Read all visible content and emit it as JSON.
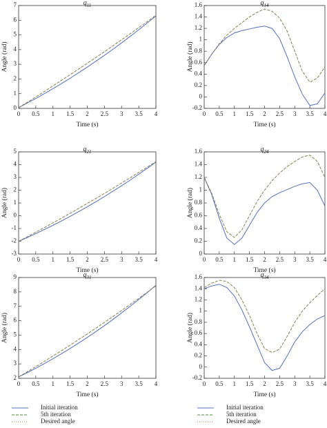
{
  "chart_data": [
    {
      "type": "line",
      "title": "q11",
      "xlabel": "Time (s)",
      "ylabel": "Angle (rad)",
      "x": [
        0,
        0.25,
        0.5,
        0.75,
        1,
        1.25,
        1.5,
        1.75,
        2,
        2.25,
        2.5,
        2.75,
        3,
        3.25,
        3.5,
        3.75,
        4
      ],
      "xlim": [
        0,
        4
      ],
      "xticks": [
        0,
        0.5,
        1,
        1.5,
        2,
        2.5,
        3,
        3.5,
        4
      ],
      "ylim": [
        0,
        7
      ],
      "yticks": [
        0,
        1,
        2,
        3,
        4,
        5,
        6,
        7
      ],
      "series": [
        {
          "name": "Initial iteration",
          "color": "#4f6fbf",
          "style": "solid",
          "values": [
            0.05,
            0.36,
            0.67,
            1.0,
            1.34,
            1.69,
            2.05,
            2.43,
            2.81,
            3.21,
            3.61,
            4.03,
            4.46,
            4.9,
            5.35,
            5.82,
            6.29
          ]
        },
        {
          "name": "5th iteration",
          "color": "#4c8a3c",
          "style": "dashed",
          "values": [
            0.05,
            0.41,
            0.78,
            1.15,
            1.53,
            1.91,
            2.29,
            2.68,
            3.07,
            3.46,
            3.86,
            4.26,
            4.67,
            5.08,
            5.49,
            5.91,
            6.33
          ]
        },
        {
          "name": "Desired angle",
          "color": "#c8685a",
          "style": "dotted",
          "values": [
            0.05,
            0.41,
            0.78,
            1.15,
            1.53,
            1.91,
            2.29,
            2.68,
            3.07,
            3.46,
            3.86,
            4.26,
            4.67,
            5.08,
            5.49,
            5.91,
            6.33
          ]
        }
      ]
    },
    {
      "type": "line",
      "title": "q14",
      "xlabel": "Time (s)",
      "ylabel": "Angle (rad)",
      "x": [
        0,
        0.25,
        0.5,
        0.75,
        1,
        1.25,
        1.5,
        1.75,
        2,
        2.25,
        2.5,
        2.75,
        3,
        3.25,
        3.5,
        3.75,
        4
      ],
      "xlim": [
        0,
        4
      ],
      "xticks": [
        0,
        0.5,
        1,
        1.5,
        2,
        2.5,
        3,
        3.5,
        4
      ],
      "ylim": [
        -0.2,
        1.6
      ],
      "yticks": [
        -0.2,
        0,
        0.2,
        0.4,
        0.6,
        0.8,
        1,
        1.2,
        1.4,
        1.6
      ],
      "series": [
        {
          "name": "Initial iteration",
          "color": "#4f6fbf",
          "style": "solid",
          "values": [
            0.55,
            0.75,
            0.92,
            1.04,
            1.12,
            1.16,
            1.19,
            1.22,
            1.24,
            1.2,
            1.02,
            0.7,
            0.35,
            0.05,
            -0.15,
            -0.12,
            0.07
          ]
        },
        {
          "name": "5th iteration",
          "color": "#4c8a3c",
          "style": "dashed",
          "values": [
            0.55,
            0.75,
            0.93,
            1.08,
            1.2,
            1.3,
            1.4,
            1.48,
            1.54,
            1.5,
            1.38,
            1.15,
            0.8,
            0.45,
            0.26,
            0.33,
            0.53
          ]
        },
        {
          "name": "Desired angle",
          "color": "#c8685a",
          "style": "dotted",
          "values": [
            0.55,
            0.75,
            0.93,
            1.08,
            1.2,
            1.3,
            1.4,
            1.48,
            1.54,
            1.5,
            1.38,
            1.15,
            0.8,
            0.45,
            0.26,
            0.33,
            0.53
          ]
        }
      ]
    },
    {
      "type": "line",
      "title": "q21",
      "xlabel": "Time (s)",
      "ylabel": "Angle (rad)",
      "x": [
        0,
        0.25,
        0.5,
        0.75,
        1,
        1.25,
        1.5,
        1.75,
        2,
        2.25,
        2.5,
        2.75,
        3,
        3.25,
        3.5,
        3.75,
        4
      ],
      "xlim": [
        0,
        4
      ],
      "xticks": [
        0,
        0.5,
        1,
        1.5,
        2,
        2.5,
        3,
        3.5,
        4
      ],
      "ylim": [
        -3,
        5
      ],
      "yticks": [
        -3,
        -2,
        -1,
        0,
        1,
        2,
        3,
        4,
        5
      ],
      "series": [
        {
          "name": "Initial iteration",
          "color": "#4f6fbf",
          "style": "solid",
          "values": [
            -2,
            -1.71,
            -1.4,
            -1.08,
            -0.75,
            -0.41,
            -0.05,
            0.32,
            0.7,
            1.09,
            1.5,
            1.92,
            2.35,
            2.79,
            3.25,
            3.72,
            4.2
          ]
        },
        {
          "name": "5th iteration",
          "color": "#4c8a3c",
          "style": "dashed",
          "values": [
            -2,
            -1.65,
            -1.29,
            -0.93,
            -0.56,
            -0.19,
            0.19,
            0.57,
            0.96,
            1.35,
            1.75,
            2.15,
            2.56,
            2.97,
            3.39,
            3.81,
            4.24
          ]
        },
        {
          "name": "Desired angle",
          "color": "#c8685a",
          "style": "dotted",
          "values": [
            -2,
            -1.65,
            -1.29,
            -0.93,
            -0.56,
            -0.19,
            0.19,
            0.57,
            0.96,
            1.35,
            1.75,
            2.15,
            2.56,
            2.97,
            3.39,
            3.81,
            4.24
          ]
        }
      ]
    },
    {
      "type": "line",
      "title": "q24",
      "xlabel": "Time (s)",
      "ylabel": "Angle (rad)",
      "x": [
        0,
        0.25,
        0.5,
        0.75,
        1,
        1.25,
        1.5,
        1.75,
        2,
        2.25,
        2.5,
        2.75,
        3,
        3.25,
        3.5,
        3.75,
        4
      ],
      "xlim": [
        0,
        4
      ],
      "xticks": [
        0,
        0.5,
        1,
        1.5,
        2,
        2.5,
        3,
        3.5,
        4
      ],
      "ylim": [
        0,
        1.6
      ],
      "yticks": [
        0,
        0.2,
        0.4,
        0.6,
        0.8,
        1,
        1.2,
        1.4,
        1.6
      ],
      "series": [
        {
          "name": "Initial iteration",
          "color": "#4f6fbf",
          "style": "solid",
          "values": [
            1.2,
            0.93,
            0.56,
            0.25,
            0.15,
            0.25,
            0.45,
            0.65,
            0.8,
            0.9,
            0.96,
            1.01,
            1.06,
            1.1,
            1.12,
            1.0,
            0.75
          ]
        },
        {
          "name": "5th iteration",
          "color": "#4c8a3c",
          "style": "dashed",
          "values": [
            1.2,
            0.95,
            0.62,
            0.35,
            0.26,
            0.38,
            0.6,
            0.82,
            1.0,
            1.15,
            1.27,
            1.37,
            1.45,
            1.52,
            1.55,
            1.45,
            1.2
          ]
        },
        {
          "name": "Desired angle",
          "color": "#c8685a",
          "style": "dotted",
          "values": [
            1.2,
            0.95,
            0.62,
            0.35,
            0.26,
            0.38,
            0.6,
            0.82,
            1.0,
            1.15,
            1.27,
            1.37,
            1.45,
            1.52,
            1.55,
            1.45,
            1.2
          ]
        }
      ]
    },
    {
      "type": "line",
      "title": "q31",
      "xlabel": "Time (s)",
      "ylabel": "Angle (rad)",
      "legend": true,
      "x": [
        0,
        0.25,
        0.5,
        0.75,
        1,
        1.25,
        1.5,
        1.75,
        2,
        2.25,
        2.5,
        2.75,
        3,
        3.25,
        3.5,
        3.75,
        4
      ],
      "xlim": [
        0,
        4
      ],
      "xticks": [
        0,
        0.5,
        1,
        1.5,
        2,
        2.5,
        3,
        3.5,
        4
      ],
      "ylim": [
        2,
        9
      ],
      "yticks": [
        2,
        3,
        4,
        5,
        6,
        7,
        8,
        9
      ],
      "series": [
        {
          "name": "Initial iteration",
          "color": "#4f6fbf",
          "style": "solid",
          "values": [
            2.1,
            2.39,
            2.7,
            3.02,
            3.36,
            3.71,
            4.07,
            4.45,
            4.84,
            5.24,
            5.66,
            6.09,
            6.54,
            7.0,
            7.47,
            7.96,
            8.46
          ]
        },
        {
          "name": "5th iteration",
          "color": "#4c8a3c",
          "style": "dashed",
          "values": [
            2.1,
            2.45,
            2.81,
            3.18,
            3.55,
            3.92,
            4.3,
            4.69,
            5.08,
            5.48,
            5.88,
            6.29,
            6.71,
            7.13,
            7.55,
            7.98,
            8.42
          ]
        },
        {
          "name": "Desired angle",
          "color": "#c8685a",
          "style": "dotted",
          "values": [
            2.1,
            2.45,
            2.81,
            3.18,
            3.55,
            3.92,
            4.3,
            4.69,
            5.08,
            5.48,
            5.88,
            6.29,
            6.71,
            7.13,
            7.55,
            7.98,
            8.42
          ]
        }
      ]
    },
    {
      "type": "line",
      "title": "q34",
      "xlabel": "Time (s)",
      "ylabel": "Angle (rad)",
      "legend": true,
      "x": [
        0,
        0.25,
        0.5,
        0.75,
        1,
        1.25,
        1.5,
        1.75,
        2,
        2.25,
        2.5,
        2.75,
        3,
        3.25,
        3.5,
        3.75,
        4
      ],
      "xlim": [
        0,
        4
      ],
      "xticks": [
        0,
        0.5,
        1,
        1.5,
        2,
        2.5,
        3,
        3.5,
        4
      ],
      "ylim": [
        -0.2,
        1.6
      ],
      "yticks": [
        -0.2,
        0,
        0.2,
        0.4,
        0.6,
        0.8,
        1,
        1.2,
        1.4,
        1.6
      ],
      "series": [
        {
          "name": "Initial iteration",
          "color": "#4f6fbf",
          "style": "solid",
          "values": [
            1.4,
            1.45,
            1.48,
            1.42,
            1.27,
            1.02,
            0.72,
            0.4,
            0.08,
            -0.06,
            -0.02,
            0.2,
            0.45,
            0.63,
            0.76,
            0.86,
            0.92
          ]
        },
        {
          "name": "5th iteration",
          "color": "#4c8a3c",
          "style": "dashed",
          "values": [
            1.42,
            1.5,
            1.55,
            1.53,
            1.42,
            1.2,
            0.92,
            0.6,
            0.33,
            0.26,
            0.32,
            0.55,
            0.8,
            1.0,
            1.15,
            1.28,
            1.4
          ]
        },
        {
          "name": "Desired angle",
          "color": "#c8685a",
          "style": "dotted",
          "values": [
            1.42,
            1.5,
            1.55,
            1.53,
            1.42,
            1.2,
            0.92,
            0.6,
            0.33,
            0.26,
            0.32,
            0.55,
            0.8,
            1.0,
            1.15,
            1.28,
            1.4
          ]
        }
      ]
    }
  ]
}
